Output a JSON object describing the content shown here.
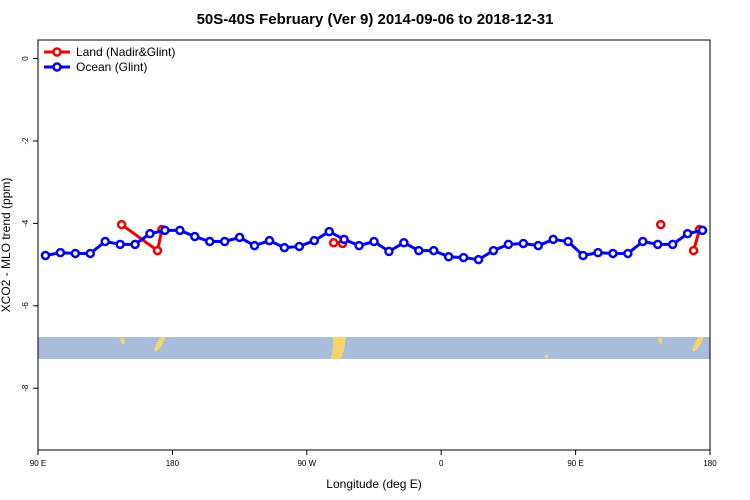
{
  "chart_data": {
    "type": "line",
    "title": "50S-40S February (Ver 9)   2014-09-06 to 2018-12-31",
    "x_label": "Longitude (deg E)",
    "y_label": "XCO2 - MLO trend (ppm)",
    "xlim": [
      90,
      540
    ],
    "xticks": [
      {
        "value": 90,
        "label": "90 E"
      },
      180,
      {
        "value": 270,
        "label": "90 W"
      },
      {
        "value": 360,
        "label": "0"
      },
      {
        "value": 450,
        "label": "90 E"
      },
      {
        "value": 540,
        "label": "180"
      }
    ],
    "ylim": [
      -9.5,
      0.45
    ],
    "yticks": [
      0,
      -2,
      -4,
      -6,
      -8
    ],
    "legend": "top-left",
    "series": [
      {
        "name": "Land (Nadir&Glint)",
        "color": "#ee0000",
        "x": [
          146,
          170,
          173,
          230,
          288,
          294,
          400,
          507,
          518,
          529,
          533
        ],
        "values": [
          -4.03,
          -4.66,
          -4.15,
          null,
          -4.47,
          -4.49,
          null,
          -4.03,
          null,
          -4.66,
          -4.15
        ]
      },
      {
        "name": "Ocean (Glint)",
        "color": "#0000ee",
        "x": [
          95,
          105,
          115,
          125,
          135,
          145,
          155,
          165,
          175,
          185,
          195,
          205,
          215,
          225,
          235,
          245,
          255,
          265,
          275,
          285,
          295,
          305,
          315,
          325,
          335,
          345,
          355,
          365,
          375,
          385,
          395,
          405,
          415,
          425,
          435,
          445,
          455,
          465,
          475,
          485,
          495,
          505,
          515,
          525,
          535
        ],
        "values": [
          -4.78,
          -4.71,
          -4.73,
          -4.73,
          -4.44,
          -4.51,
          -4.51,
          -4.25,
          -4.17,
          -4.17,
          -4.32,
          -4.44,
          -4.44,
          -4.34,
          -4.54,
          -4.42,
          -4.59,
          -4.56,
          -4.42,
          -4.2,
          -4.39,
          -4.54,
          -4.44,
          -4.68,
          -4.47,
          -4.66,
          -4.66,
          -4.81,
          -4.83,
          -4.88,
          -4.66,
          -4.51,
          -4.49,
          -4.54,
          -4.39,
          -4.44,
          -4.78,
          -4.71,
          -4.73,
          -4.73,
          -4.44,
          -4.51,
          -4.51,
          -4.25,
          -4.17
        ]
      }
    ]
  }
}
